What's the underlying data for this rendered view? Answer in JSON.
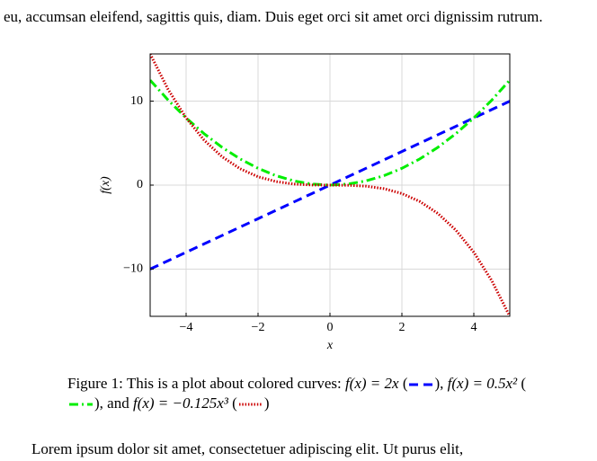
{
  "paragraphs": [
    "eu, accumsan eleifend, sagittis quis, diam. Duis eget orci sit amet orci dignissim rutrum.",
    "Lorem ipsum dolor sit amet, consectetuer adipiscing elit. Ut purus elit,"
  ],
  "chart_data": {
    "type": "line",
    "xlabel": "x",
    "ylabel": "f(x)",
    "x": [
      -5,
      -4.5,
      -4,
      -3.5,
      -3,
      -2.5,
      -2,
      -1.5,
      -1,
      -0.5,
      0,
      0.5,
      1,
      1.5,
      2,
      2.5,
      3,
      3.5,
      4,
      4.5,
      5
    ],
    "series": [
      {
        "name": "f(x) = 2x",
        "color": "#0000ff",
        "style": "dashed",
        "values": [
          -10,
          -9,
          -8,
          -7,
          -6,
          -5,
          -4,
          -3,
          -2,
          -1,
          0,
          1,
          2,
          3,
          4,
          5,
          6,
          7,
          8,
          9,
          10
        ]
      },
      {
        "name": "f(x) = 0.5x²",
        "color": "#00ee00",
        "style": "dashdot",
        "values": [
          12.5,
          10.125,
          8,
          6.125,
          4.5,
          3.125,
          2,
          1.125,
          0.5,
          0.125,
          0,
          0.125,
          0.5,
          1.125,
          2,
          3.125,
          4.5,
          6.125,
          8,
          10.125,
          12.5
        ]
      },
      {
        "name": "f(x) = −0.125x³",
        "color": "#cc0000",
        "style": "dotted",
        "values": [
          15.625,
          11.390625,
          8,
          5.359375,
          3.375,
          1.953125,
          1,
          0.421875,
          0.125,
          0.015625,
          0,
          -0.015625,
          -0.125,
          -0.421875,
          -1,
          -1.953125,
          -3.375,
          -5.359375,
          -8,
          -11.390625,
          -15.625
        ]
      }
    ],
    "xlim": [
      -5,
      5
    ],
    "ylim": [
      -15.625,
      15.625
    ],
    "xticks": [
      {
        "value": -4,
        "label": "−4"
      },
      {
        "value": -2,
        "label": "−2"
      },
      0,
      2,
      4
    ],
    "yticks": [
      {
        "value": -10,
        "label": "−10"
      },
      0,
      10
    ],
    "grid": true
  },
  "caption": {
    "label": "Figure 1:",
    "text": "This is a plot about colored curves:",
    "open": "(",
    "close": ")",
    "separator": ",",
    "conjunction": "and"
  }
}
